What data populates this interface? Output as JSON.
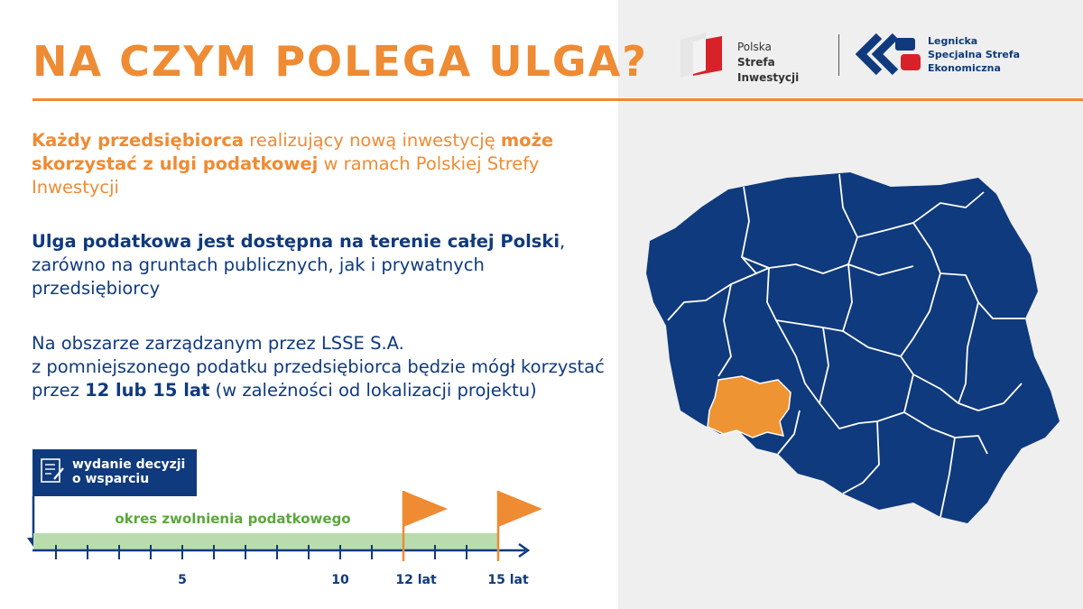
{
  "header": {
    "title": "NA CZYM POLEGA ULGA?"
  },
  "logos": {
    "psi_line1": "Polska",
    "psi_line2": "Strefa Inwestycji",
    "lsse_line1": "Legnicka",
    "lsse_line2": "Specjalna Strefa",
    "lsse_line3": "Ekonomiczna"
  },
  "paragraphs": {
    "p1": {
      "b1": "Każdy przedsiębiorca",
      "t1": " realizujący nową inwestycję ",
      "b2": "może skorzystać z ulgi podatkowej",
      "t2": " w ramach Polskiej Strefy Inwestycji"
    },
    "p2": {
      "b1": "Ulga podatkowa jest dostępna na terenie całej Polski",
      "t1": ", zarówno na gruntach publicznych, jak i prywatnych przedsiębiorcy"
    },
    "p3": {
      "t1": "Na obszarze zarządzanym przez LSSE S.A.",
      "t2": "z pomniejszonego podatku przedsiębiorca będzie mógł korzystać przez ",
      "b1": "12 lub 15 lat",
      "t3": " (w zależności od lokalizacji projektu)"
    }
  },
  "timeline": {
    "decision_line1": "wydanie decyzji",
    "decision_line2": "o wsparciu",
    "period_label": "okres zwolnienia podatkowego",
    "tick_5": "5",
    "tick_10": "10",
    "tick_12": "12 lat",
    "tick_15": "15 lat",
    "icon": "document-pen-icon"
  },
  "map": {
    "country": "Polska",
    "highlighted_region": "LSSE"
  },
  "colors": {
    "orange": "#ee8b33",
    "navy": "#0f3a7d",
    "green": "#5aa83a",
    "light_green": "#b9dcae",
    "panel_grey": "#efefef"
  }
}
